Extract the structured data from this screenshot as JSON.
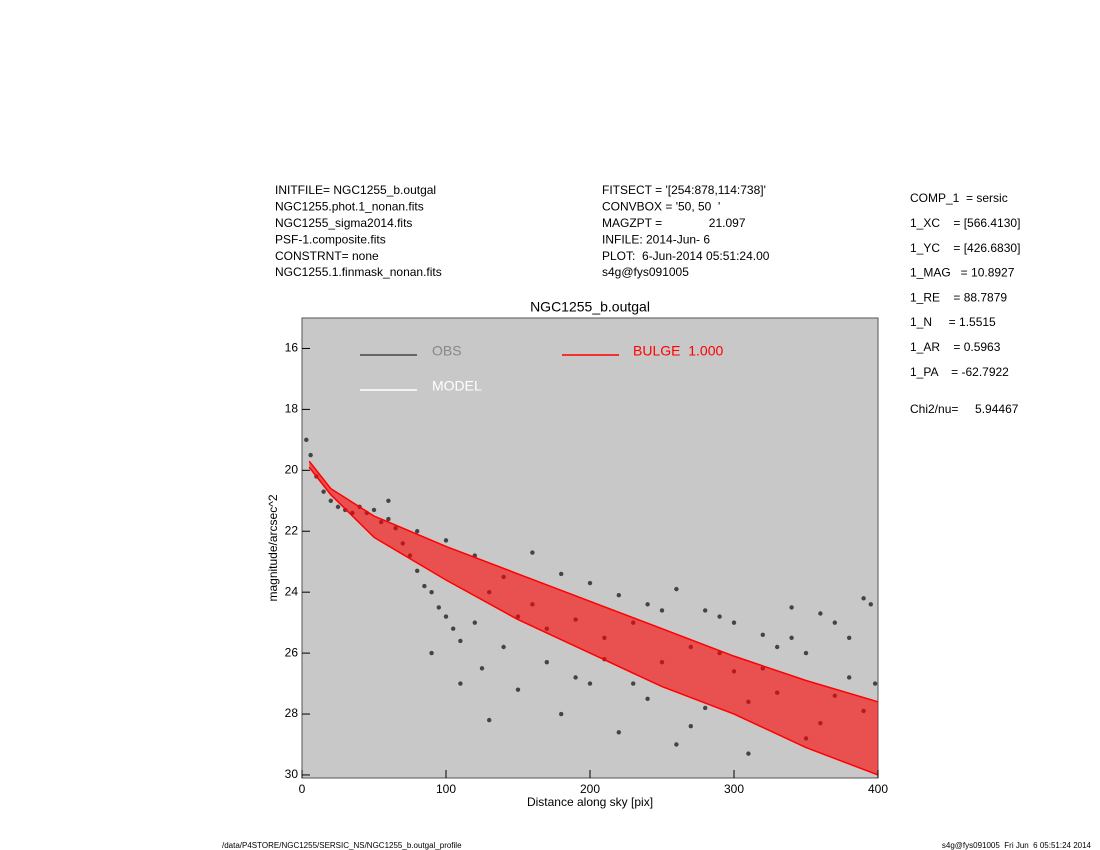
{
  "header": {
    "left": [
      "INITFILE= NGC1255_b.outgal",
      "NGC1255.phot.1_nonan.fits",
      "NGC1255_sigma2014.fits",
      "PSF-1.composite.fits",
      "CONSTRNT= none",
      "NGC1255.1.finmask_nonan.fits"
    ],
    "middle": [
      "FITSECT = '[254:878,114:738]'",
      "CONVBOX = '50, 50  '",
      "MAGZPT =              21.097",
      "INFILE: 2014-Jun- 6",
      "PLOT:  6-Jun-2014 05:51:24.00",
      "s4g@fys091005"
    ],
    "right": [
      "COMP_1  = sersic",
      "1_XC    = [566.4130]",
      "1_YC    = [426.6830]",
      "1_MAG   = 10.8927",
      "1_RE    = 88.7879",
      "1_N     = 1.5515",
      "1_AR    = 0.5963",
      "1_PA    = -62.7922"
    ],
    "chi": "Chi2/nu=     5.94467"
  },
  "footer": {
    "left": "/data/P4STORE/NGC1255/SERSIC_NS/NGC1255_b.outgal_profile",
    "right": "s4g@fys091005  Fri Jun  6 05:51:24 2014"
  },
  "chart_data": {
    "type": "scatter",
    "title": "NGC1255_b.outgal",
    "xlabel": "Distance along sky [pix]",
    "ylabel": "magnitude/arcsec^2",
    "xlim": [
      0,
      400
    ],
    "xticks": [
      0,
      100,
      200,
      300,
      400
    ],
    "ylim": [
      15,
      30.1
    ],
    "y_reversed": true,
    "yticks": [
      16,
      18,
      20,
      22,
      24,
      26,
      28,
      30
    ],
    "background": "#c8c8c8",
    "series": [
      {
        "name": "OBS",
        "color": "#444444",
        "x": [
          3,
          6,
          10,
          15,
          20,
          25,
          30,
          35,
          40,
          45,
          50,
          55,
          60,
          65,
          70,
          75,
          80,
          85,
          90,
          95,
          100,
          105,
          110,
          120,
          125,
          130,
          140,
          150,
          160,
          170,
          180,
          190,
          200,
          210,
          220,
          230,
          240,
          250,
          260,
          270,
          280,
          290,
          300,
          310,
          320,
          330,
          340,
          350,
          360,
          370,
          380,
          390,
          398,
          60,
          80,
          100,
          120,
          140,
          90,
          110,
          130,
          160,
          180,
          200,
          220,
          240,
          260,
          280,
          300,
          320,
          340,
          360,
          380,
          395,
          150,
          170,
          190,
          210,
          230,
          250,
          270,
          290,
          310,
          330,
          350,
          370,
          390
        ],
        "values": [
          19.0,
          19.5,
          20.2,
          20.7,
          21.0,
          21.2,
          21.3,
          21.4,
          21.2,
          21.4,
          21.3,
          21.7,
          21.6,
          21.9,
          22.4,
          22.8,
          23.3,
          23.8,
          24.0,
          24.5,
          24.8,
          25.2,
          25.6,
          25.0,
          26.5,
          24.0,
          25.8,
          27.2,
          24.4,
          26.3,
          28.0,
          24.9,
          27.0,
          25.5,
          28.6,
          25.0,
          27.5,
          24.6,
          29.0,
          25.8,
          27.8,
          24.8,
          26.6,
          29.3,
          25.4,
          27.3,
          24.5,
          26.0,
          28.3,
          25.0,
          26.8,
          24.2,
          27.0,
          21.0,
          22.0,
          22.3,
          22.8,
          23.5,
          26.0,
          27.0,
          28.2,
          22.7,
          23.4,
          23.7,
          24.1,
          24.4,
          23.9,
          24.6,
          25.0,
          26.5,
          25.5,
          24.7,
          25.5,
          24.4,
          24.8,
          25.2,
          26.8,
          26.2,
          27.0,
          26.3,
          28.4,
          26.0,
          27.6,
          25.8,
          28.8,
          27.4,
          27.9
        ]
      },
      {
        "name": "MODEL",
        "color": "#ffffff"
      },
      {
        "name": "BULGE  1.000",
        "color": "#ff0000",
        "x": [
          5,
          20,
          50,
          100,
          150,
          200,
          250,
          300,
          350,
          400
        ],
        "values_high": [
          19.7,
          20.6,
          21.5,
          22.5,
          23.4,
          24.3,
          25.2,
          26.1,
          26.9,
          27.6
        ],
        "values_low": [
          19.9,
          20.8,
          22.2,
          23.6,
          24.9,
          26.0,
          27.1,
          28.0,
          29.1,
          30.0
        ]
      }
    ]
  }
}
